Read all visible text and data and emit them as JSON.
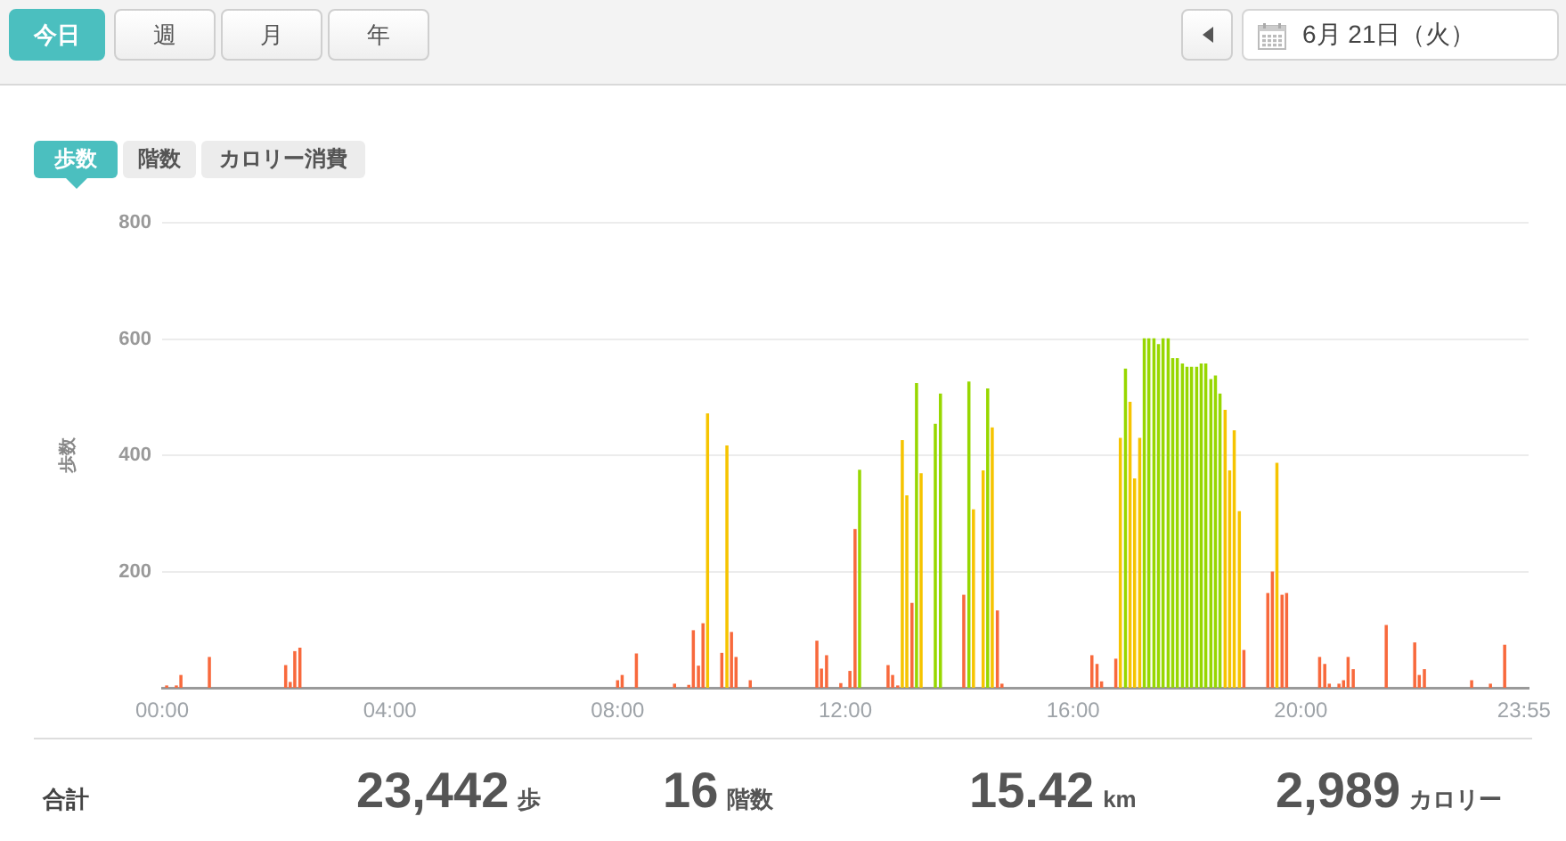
{
  "chart_data": [
    {
      "type": "bar",
      "ylabel": "歩数",
      "x": [
        0.08,
        0.25,
        0.33,
        0.83,
        2.17,
        2.25,
        2.33,
        2.42,
        8,
        8.08,
        8.33,
        9,
        9.25,
        9.33,
        9.42,
        9.5,
        9.58,
        9.83,
        9.92,
        10,
        10.08,
        10.33,
        11.5,
        11.58,
        11.67,
        11.92,
        12.08,
        12.17,
        12.25,
        12.75,
        12.83,
        12.92,
        13,
        13.08,
        13.17,
        13.25,
        13.33,
        13.58,
        13.67,
        14.08,
        14.17,
        14.25,
        14.42,
        14.5,
        14.58,
        14.67,
        14.75,
        16.33,
        16.42,
        16.5,
        16.75,
        16.83,
        16.92,
        17,
        17.08,
        17.17,
        17.25,
        17.33,
        17.42,
        17.5,
        17.58,
        17.67,
        17.75,
        17.83,
        17.92,
        18,
        18.08,
        18.17,
        18.25,
        18.33,
        18.42,
        18.5,
        18.58,
        18.67,
        18.75,
        18.83,
        18.92,
        19,
        19.42,
        19.5,
        19.58,
        19.67,
        19.75,
        20.33,
        20.42,
        20.5,
        20.67,
        20.75,
        20.83,
        20.92,
        21.5,
        22,
        22.08,
        22.17,
        23,
        23.33,
        23.58
      ],
      "values": [
        3,
        3,
        21,
        52,
        38,
        9,
        62,
        68,
        12,
        21,
        58,
        6,
        4,
        98,
        37,
        110,
        471,
        59,
        416,
        95,
        52,
        12,
        80,
        32,
        55,
        7,
        28,
        272,
        374,
        38,
        21,
        3,
        425,
        330,
        145,
        523,
        368,
        453,
        505,
        159,
        526,
        306,
        373,
        514,
        447,
        132,
        6,
        55,
        40,
        10,
        49,
        429,
        548,
        491,
        359,
        429,
        600,
        600,
        600,
        590,
        600,
        600,
        566,
        566,
        557,
        551,
        551,
        551,
        557,
        557,
        530,
        536,
        505,
        477,
        373,
        442,
        303,
        64,
        162,
        199,
        386,
        159,
        162,
        52,
        40,
        6,
        6,
        12,
        52,
        31,
        107,
        77,
        21,
        31,
        12,
        6,
        73
      ],
      "colors": [
        "#f8693c",
        "#f8693c",
        "#f8693c",
        "#f8693c",
        "#f8693c",
        "#f8693c",
        "#f8693c",
        "#f8693c",
        "#f8693c",
        "#f8693c",
        "#f8693c",
        "#f8693c",
        "#f8693c",
        "#f8693c",
        "#f8693c",
        "#f8693c",
        "#f6c400",
        "#f8693c",
        "#f6c400",
        "#f8693c",
        "#f8693c",
        "#f8693c",
        "#f8693c",
        "#f8693c",
        "#f8693c",
        "#f8693c",
        "#f8693c",
        "#f8693c",
        "#97d700",
        "#f8693c",
        "#f8693c",
        "#f8693c",
        "#f6c400",
        "#f6c400",
        "#f8693c",
        "#97d700",
        "#f6c400",
        "#97d700",
        "#97d700",
        "#f8693c",
        "#97d700",
        "#f6c400",
        "#f6c400",
        "#97d700",
        "#f6c400",
        "#f8693c",
        "#f8693c",
        "#f8693c",
        "#f8693c",
        "#f8693c",
        "#f8693c",
        "#f6c400",
        "#97d700",
        "#f6c400",
        "#f6c400",
        "#f6c400",
        "#97d700",
        "#97d700",
        "#97d700",
        "#97d700",
        "#97d700",
        "#97d700",
        "#97d700",
        "#97d700",
        "#97d700",
        "#97d700",
        "#97d700",
        "#97d700",
        "#97d700",
        "#97d700",
        "#97d700",
        "#97d700",
        "#97d700",
        "#f6c400",
        "#f6c400",
        "#f6c400",
        "#f6c400",
        "#f8693c",
        "#f8693c",
        "#f8693c",
        "#f6c400",
        "#f8693c",
        "#f8693c",
        "#f8693c",
        "#f8693c",
        "#f8693c",
        "#f8693c",
        "#f8693c",
        "#f8693c",
        "#f8693c",
        "#f8693c",
        "#f8693c",
        "#f8693c",
        "#f8693c",
        "#f8693c",
        "#f8693c",
        "#f8693c"
      ],
      "xlim": [
        0,
        24
      ],
      "xticks": [
        {
          "value": 0,
          "label": "00:00"
        },
        {
          "value": 4,
          "label": "04:00"
        },
        {
          "value": 8,
          "label": "08:00"
        },
        {
          "value": 12,
          "label": "12:00"
        },
        {
          "value": 16,
          "label": "16:00"
        },
        {
          "value": 20,
          "label": "20:00"
        },
        {
          "value": 23.92,
          "label": "23:55"
        }
      ],
      "ylim": [
        0,
        800
      ],
      "yticks": [
        200,
        400,
        600,
        800
      ],
      "grid": "y",
      "annotations": [
        "今日",
        "週",
        "月",
        "年",
        "6月 21日（火）",
        "歩数",
        "階数",
        "カロリー消費"
      ]
    },
    {
      "type": "other",
      "annotations": [
        "合計",
        "23,442",
        "歩",
        "16",
        "階数",
        "15.42",
        "km",
        "2,989",
        "カロリー"
      ]
    }
  ]
}
